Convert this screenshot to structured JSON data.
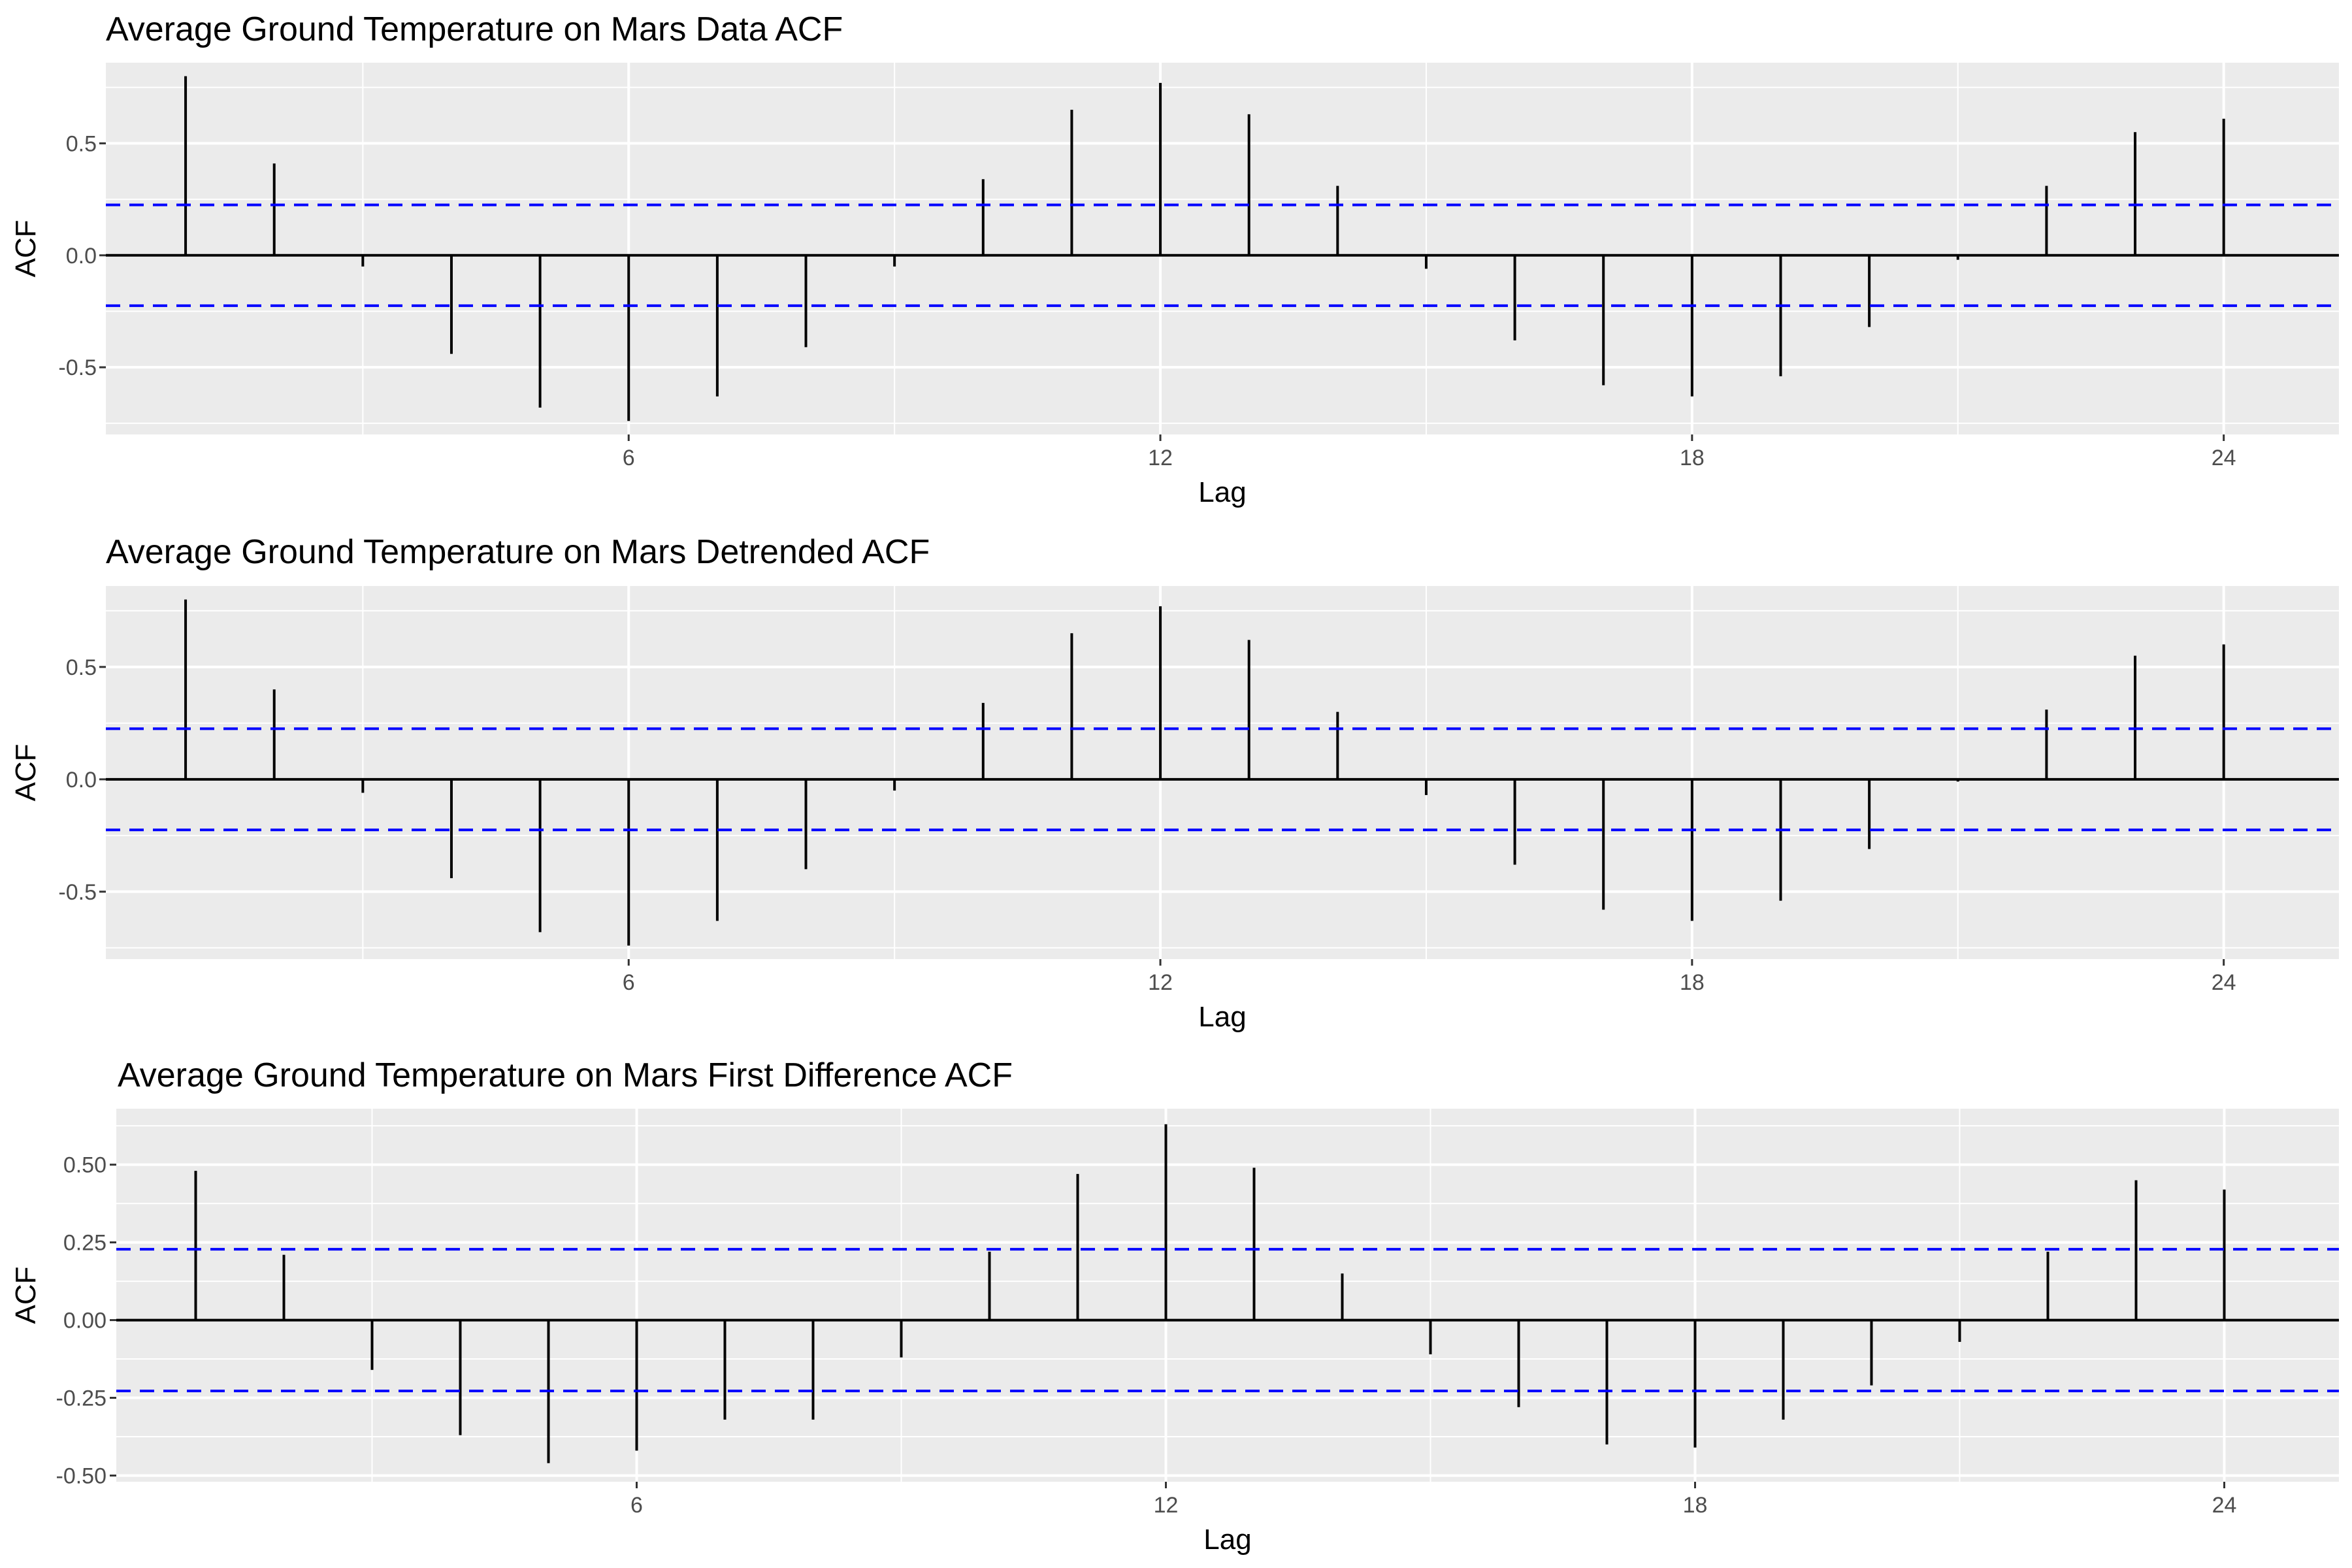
{
  "colors": {
    "panel_background": "#ebebeb",
    "grid": "#ffffff",
    "bars": "#000000",
    "confidence_band": "#0000ff"
  },
  "chart_data": [
    {
      "type": "bar",
      "title": "Average Ground Temperature on Mars Data ACF",
      "xlabel": "Lag",
      "ylabel": "ACF",
      "x": [
        1,
        2,
        3,
        4,
        5,
        6,
        7,
        8,
        9,
        10,
        11,
        12,
        13,
        14,
        15,
        16,
        17,
        18,
        19,
        20,
        21,
        22,
        23,
        24
      ],
      "values": [
        0.8,
        0.41,
        -0.05,
        -0.44,
        -0.68,
        -0.74,
        -0.63,
        -0.41,
        -0.05,
        0.34,
        0.65,
        0.77,
        0.63,
        0.31,
        -0.06,
        -0.38,
        -0.58,
        -0.63,
        -0.54,
        -0.32,
        -0.02,
        0.31,
        0.55,
        0.61
      ],
      "confidence_limit": 0.225,
      "xlim": [
        0.1,
        25.3
      ],
      "ylim": [
        -0.8,
        0.86
      ],
      "xticks": [
        6,
        12,
        18,
        24
      ],
      "xtick_labels": [
        "6",
        "12",
        "18",
        "24"
      ],
      "yticks": [
        -0.5,
        0.0,
        0.5
      ],
      "ytick_labels": [
        "-0.5",
        "0.0",
        "0.5"
      ],
      "grid": true
    },
    {
      "type": "bar",
      "title": "Average Ground Temperature on Mars Detrended ACF",
      "xlabel": "Lag",
      "ylabel": "ACF",
      "x": [
        1,
        2,
        3,
        4,
        5,
        6,
        7,
        8,
        9,
        10,
        11,
        12,
        13,
        14,
        15,
        16,
        17,
        18,
        19,
        20,
        21,
        22,
        23,
        24
      ],
      "values": [
        0.8,
        0.4,
        -0.06,
        -0.44,
        -0.68,
        -0.74,
        -0.63,
        -0.4,
        -0.05,
        0.34,
        0.65,
        0.77,
        0.62,
        0.3,
        -0.07,
        -0.38,
        -0.58,
        -0.63,
        -0.54,
        -0.31,
        -0.01,
        0.31,
        0.55,
        0.6
      ],
      "confidence_limit": 0.225,
      "xlim": [
        0.1,
        25.3
      ],
      "ylim": [
        -0.8,
        0.86
      ],
      "xticks": [
        6,
        12,
        18,
        24
      ],
      "xtick_labels": [
        "6",
        "12",
        "18",
        "24"
      ],
      "yticks": [
        -0.5,
        0.0,
        0.5
      ],
      "ytick_labels": [
        "-0.5",
        "0.0",
        "0.5"
      ],
      "grid": true
    },
    {
      "type": "bar",
      "title": "Average Ground Temperature on Mars First Difference ACF",
      "xlabel": "Lag",
      "ylabel": "ACF",
      "x": [
        1,
        2,
        3,
        4,
        5,
        6,
        7,
        8,
        9,
        10,
        11,
        12,
        13,
        14,
        15,
        16,
        17,
        18,
        19,
        20,
        21,
        22,
        23,
        24
      ],
      "values": [
        0.48,
        0.21,
        -0.16,
        -0.37,
        -0.46,
        -0.42,
        -0.32,
        -0.32,
        -0.12,
        0.22,
        0.47,
        0.63,
        0.49,
        0.15,
        -0.11,
        -0.28,
        -0.4,
        -0.41,
        -0.32,
        -0.21,
        -0.07,
        0.22,
        0.45,
        0.42
      ],
      "confidence_limit": 0.228,
      "xlim": [
        0.1,
        25.3
      ],
      "ylim": [
        -0.52,
        0.68
      ],
      "xticks": [
        6,
        12,
        18,
        24
      ],
      "xtick_labels": [
        "6",
        "12",
        "18",
        "24"
      ],
      "yticks": [
        -0.5,
        -0.25,
        0.0,
        0.25,
        0.5
      ],
      "ytick_labels": [
        "-0.50",
        "-0.25",
        "0.00",
        "0.25",
        "0.50"
      ],
      "grid": true
    }
  ]
}
